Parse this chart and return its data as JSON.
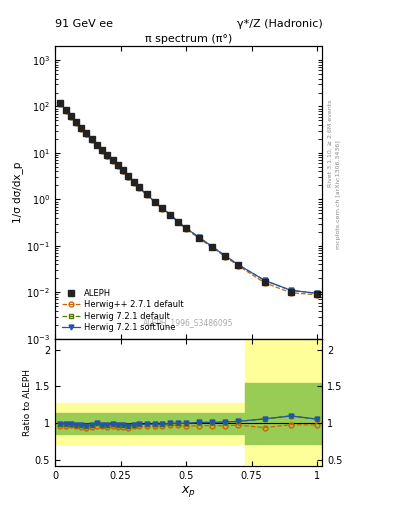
{
  "title_left": "91 GeV ee",
  "title_right": "γ*/Z (Hadronic)",
  "plot_title": "π spectrum (π°)",
  "xlabel": "x_{p}",
  "ylabel_main": "1/σ dσ/dx_p",
  "ylabel_ratio": "Ratio to ALEPH",
  "watermark": "ALEPH_1996_S3486095",
  "right_label_top": "Rivet 3.1.10, ≥ 2.6M events",
  "right_label_bottom": "mcplots.cern.ch [arXiv:1306.3436]",
  "xp": [
    0.02,
    0.04,
    0.06,
    0.08,
    0.1,
    0.12,
    0.14,
    0.16,
    0.18,
    0.2,
    0.22,
    0.24,
    0.26,
    0.28,
    0.3,
    0.32,
    0.35,
    0.38,
    0.41,
    0.44,
    0.47,
    0.5,
    0.55,
    0.6,
    0.65,
    0.7,
    0.8,
    0.9,
    1.0
  ],
  "aleph_y": [
    120,
    85,
    62,
    47,
    35,
    27,
    20,
    15,
    11.5,
    9.0,
    7.0,
    5.5,
    4.2,
    3.2,
    2.4,
    1.85,
    1.3,
    0.9,
    0.65,
    0.47,
    0.33,
    0.24,
    0.15,
    0.095,
    0.06,
    0.038,
    0.017,
    0.01,
    0.009
  ],
  "herwig_pp_y": [
    115,
    82,
    60,
    45,
    33,
    25,
    19,
    14.5,
    11.0,
    8.5,
    6.7,
    5.2,
    4.0,
    3.0,
    2.3,
    1.78,
    1.25,
    0.87,
    0.63,
    0.46,
    0.32,
    0.23,
    0.145,
    0.092,
    0.058,
    0.037,
    0.016,
    0.0098,
    0.0088
  ],
  "herwig721_y": [
    119,
    84,
    61,
    46,
    34,
    26,
    19.5,
    15,
    11.3,
    8.8,
    6.9,
    5.4,
    4.1,
    3.1,
    2.35,
    1.82,
    1.28,
    0.89,
    0.64,
    0.47,
    0.33,
    0.24,
    0.152,
    0.096,
    0.061,
    0.039,
    0.018,
    0.011,
    0.0095
  ],
  "herwig_soft_y": [
    119,
    84,
    61,
    46,
    34,
    26,
    19.5,
    15,
    11.3,
    8.8,
    6.9,
    5.4,
    4.1,
    3.1,
    2.35,
    1.82,
    1.28,
    0.89,
    0.64,
    0.47,
    0.33,
    0.24,
    0.152,
    0.096,
    0.061,
    0.039,
    0.018,
    0.011,
    0.0095
  ],
  "ratio_herwig_pp": [
    0.96,
    0.965,
    0.97,
    0.96,
    0.943,
    0.93,
    0.95,
    0.967,
    0.957,
    0.944,
    0.957,
    0.945,
    0.952,
    0.9375,
    0.958,
    0.962,
    0.962,
    0.967,
    0.969,
    0.979,
    0.97,
    0.958,
    0.967,
    0.968,
    0.967,
    0.974,
    0.941,
    0.98,
    0.978
  ],
  "ratio_herwig721": [
    0.992,
    0.988,
    0.984,
    0.979,
    0.971,
    0.963,
    0.975,
    1.0,
    0.983,
    0.978,
    0.986,
    0.982,
    0.976,
    0.969,
    0.979,
    0.984,
    0.985,
    0.989,
    0.985,
    1.0,
    1.0,
    1.0,
    1.013,
    1.011,
    1.017,
    1.026,
    1.059,
    1.1,
    1.056
  ],
  "ratio_herwig_soft": [
    0.992,
    0.988,
    0.984,
    0.979,
    0.971,
    0.963,
    0.975,
    1.0,
    0.983,
    0.978,
    0.986,
    0.982,
    0.976,
    0.969,
    0.979,
    0.984,
    0.985,
    0.989,
    0.985,
    1.0,
    1.0,
    1.0,
    1.013,
    1.011,
    1.017,
    1.026,
    1.059,
    1.1,
    1.056
  ],
  "color_aleph": "#222222",
  "color_herwig_pp": "#cc6600",
  "color_herwig721": "#557700",
  "color_herwig_soft": "#2255aa",
  "color_yellow": "#ffff99",
  "color_green": "#99cc55",
  "ylim_main": [
    0.001,
    2000
  ],
  "ylim_ratio": [
    0.42,
    2.15
  ],
  "xlim": [
    0.0,
    1.02
  ]
}
